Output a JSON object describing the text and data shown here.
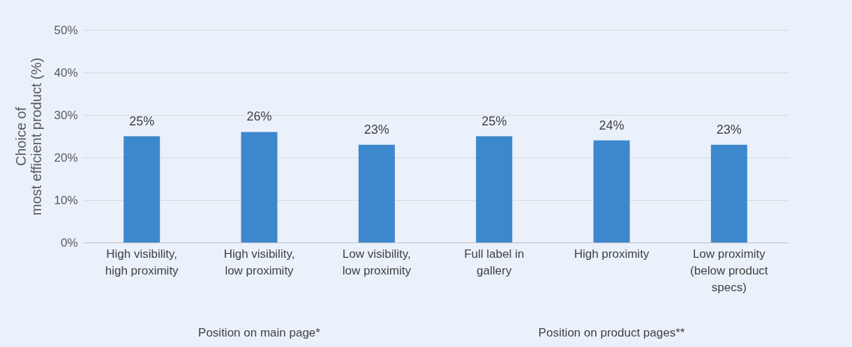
{
  "chart_data": {
    "type": "bar",
    "ylabel": "Choice of\nmost efficient product (%)",
    "categories": [
      "High visibility, high proximity",
      "High visibility, low proximity",
      "Low visibility, low proximity",
      "Full label in gallery",
      "High proximity",
      "Low proximity (below product specs)"
    ],
    "values": [
      25,
      26,
      23,
      25,
      24,
      23
    ],
    "value_labels": [
      "25%",
      "26%",
      "23%",
      "25%",
      "24%",
      "23%"
    ],
    "color": "#3d87cc",
    "ylim": [
      0,
      50
    ],
    "yticks": [
      {
        "value": 0,
        "label": "0%"
      },
      {
        "value": 10,
        "label": "10%"
      },
      {
        "value": 20,
        "label": "20%"
      },
      {
        "value": 30,
        "label": "30%"
      },
      {
        "value": 40,
        "label": "40%"
      },
      {
        "value": 50,
        "label": "50%"
      }
    ],
    "grid": "y",
    "annotations": [
      "Position on main page*",
      "Position on product pages**"
    ]
  }
}
